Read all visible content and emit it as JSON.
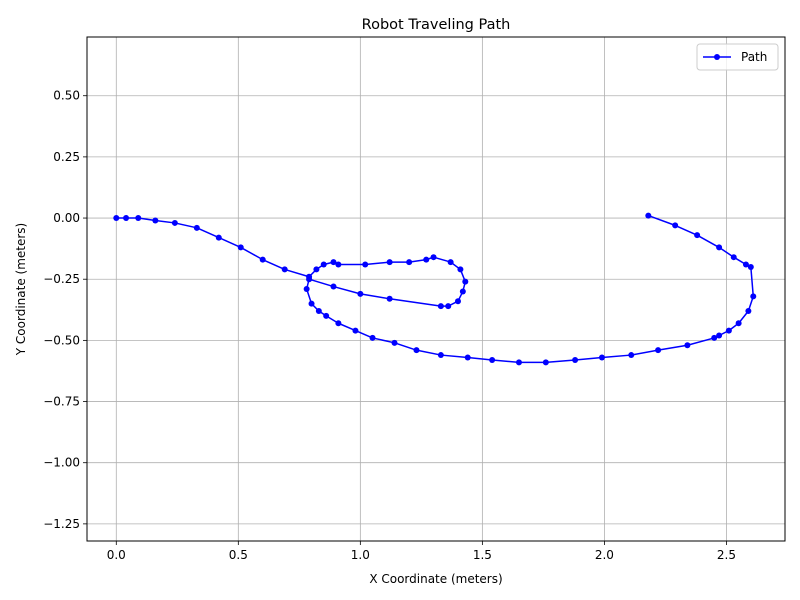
{
  "chart_data": {
    "type": "line",
    "title": "Robot Traveling Path",
    "xlabel": "X Coordinate (meters)",
    "ylabel": "Y Coordinate (meters)",
    "xlim": [
      -0.12,
      2.74
    ],
    "ylim": [
      -1.32,
      0.74
    ],
    "xticks": [
      0.0,
      0.5,
      1.0,
      1.5,
      2.0,
      2.5
    ],
    "xtick_labels": [
      "0.0",
      "0.5",
      "1.0",
      "1.5",
      "2.0",
      "2.5"
    ],
    "yticks": [
      0.5,
      0.25,
      0.0,
      -0.25,
      -0.5,
      -0.75,
      -1.0,
      -1.25
    ],
    "ytick_labels": [
      "0.50",
      "0.25",
      "0.00",
      "−0.25",
      "−0.50",
      "−0.75",
      "−1.00",
      "−1.25"
    ],
    "grid": true,
    "legend_position": "top-right",
    "series": [
      {
        "name": "Path",
        "color": "#0000ff",
        "marker": "circle",
        "x": [
          0.0,
          0.04,
          0.09,
          0.16,
          0.24,
          0.33,
          0.42,
          0.51,
          0.6,
          0.69,
          0.79,
          0.82,
          0.85,
          0.89,
          0.91,
          1.02,
          1.12,
          1.2,
          1.27,
          1.3,
          1.37,
          1.41,
          1.43,
          1.42,
          1.4,
          1.36,
          1.33,
          1.12,
          1.0,
          0.89,
          0.79,
          0.78,
          0.8,
          0.83,
          0.86,
          0.91,
          0.98,
          1.05,
          1.14,
          1.23,
          1.33,
          1.44,
          1.54,
          1.65,
          1.76,
          1.88,
          1.99,
          2.11,
          2.22,
          2.34,
          2.45,
          2.47,
          2.51,
          2.55,
          2.59,
          2.61,
          2.6,
          2.58,
          2.53,
          2.47,
          2.38,
          2.29,
          2.18
        ],
        "y": [
          0.0,
          0.0,
          0.0,
          -0.01,
          -0.02,
          -0.04,
          -0.08,
          -0.12,
          -0.17,
          -0.21,
          -0.24,
          -0.21,
          -0.19,
          -0.18,
          -0.19,
          -0.19,
          -0.18,
          -0.18,
          -0.17,
          -0.16,
          -0.18,
          -0.21,
          -0.26,
          -0.3,
          -0.34,
          -0.36,
          -0.36,
          -0.33,
          -0.31,
          -0.28,
          -0.25,
          -0.29,
          -0.35,
          -0.38,
          -0.4,
          -0.43,
          -0.46,
          -0.49,
          -0.51,
          -0.54,
          -0.56,
          -0.57,
          -0.58,
          -0.59,
          -0.59,
          -0.58,
          -0.57,
          -0.56,
          -0.54,
          -0.52,
          -0.49,
          -0.48,
          -0.46,
          -0.43,
          -0.38,
          -0.32,
          -0.2,
          -0.19,
          -0.16,
          -0.12,
          -0.07,
          -0.03,
          0.01
        ]
      }
    ]
  }
}
